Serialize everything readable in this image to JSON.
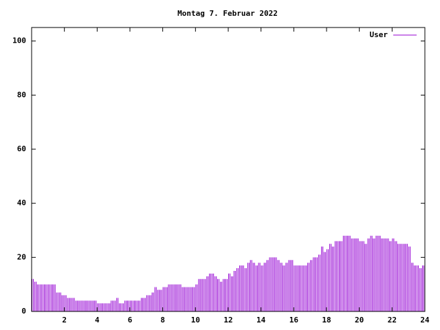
{
  "chart_data": {
    "type": "bar",
    "title": "Montag 7. Februar 2022",
    "xlim": [
      0,
      24
    ],
    "xticks": [
      2,
      4,
      6,
      8,
      10,
      12,
      14,
      16,
      18,
      20,
      22,
      24
    ],
    "ylim": [
      0,
      105
    ],
    "yticks": [
      0,
      20,
      40,
      60,
      80,
      100
    ],
    "legend": "top-right",
    "x": [
      0,
      0.17,
      0.33,
      0.5,
      0.67,
      0.83,
      1,
      1.17,
      1.33,
      1.5,
      1.67,
      1.83,
      2,
      2.17,
      2.33,
      2.5,
      2.67,
      2.83,
      3,
      3.17,
      3.33,
      3.5,
      3.67,
      3.83,
      4,
      4.17,
      4.33,
      4.5,
      4.67,
      4.83,
      5,
      5.17,
      5.33,
      5.5,
      5.67,
      5.83,
      6,
      6.17,
      6.33,
      6.5,
      6.67,
      6.83,
      7,
      7.17,
      7.33,
      7.5,
      7.67,
      7.83,
      8,
      8.17,
      8.33,
      8.5,
      8.67,
      8.83,
      9,
      9.17,
      9.33,
      9.5,
      9.67,
      9.83,
      10,
      10.17,
      10.33,
      10.5,
      10.67,
      10.83,
      11,
      11.17,
      11.33,
      11.5,
      11.67,
      11.83,
      12,
      12.17,
      12.33,
      12.5,
      12.67,
      12.83,
      13,
      13.17,
      13.33,
      13.5,
      13.67,
      13.83,
      14,
      14.17,
      14.33,
      14.5,
      14.67,
      14.83,
      15,
      15.17,
      15.33,
      15.5,
      15.67,
      15.83,
      16,
      16.17,
      16.33,
      16.5,
      16.67,
      16.83,
      17,
      17.17,
      17.33,
      17.5,
      17.67,
      17.83,
      18,
      18.17,
      18.33,
      18.5,
      18.67,
      18.83,
      19,
      19.17,
      19.33,
      19.5,
      19.67,
      19.83,
      20,
      20.17,
      20.33,
      20.5,
      20.67,
      20.83,
      21,
      21.17,
      21.33,
      21.5,
      21.67,
      21.83,
      22,
      22.17,
      22.33,
      22.5,
      22.67,
      22.83,
      23,
      23.17,
      23.33,
      23.5,
      23.67,
      23.83
    ],
    "series": [
      {
        "name": "User",
        "color": "#9400d3",
        "values": [
          12,
          11,
          10,
          10,
          10,
          10,
          10,
          10,
          10,
          7,
          7,
          6,
          6,
          5,
          5,
          5,
          4,
          4,
          4,
          4,
          4,
          4,
          4,
          4,
          3,
          3,
          3,
          3,
          3,
          4,
          4,
          5,
          3,
          3,
          4,
          4,
          4,
          4,
          4,
          4,
          5,
          5,
          6,
          6,
          7,
          9,
          8,
          8,
          9,
          9,
          10,
          10,
          10,
          10,
          10,
          9,
          9,
          9,
          9,
          9,
          10,
          12,
          12,
          12,
          13,
          14,
          14,
          13,
          12,
          11,
          12,
          12,
          14,
          13,
          15,
          16,
          17,
          17,
          16,
          18,
          19,
          18,
          17,
          18,
          17,
          18,
          19,
          20,
          20,
          20,
          19,
          18,
          17,
          18,
          19,
          19,
          17,
          17,
          17,
          17,
          17,
          18,
          19,
          20,
          20,
          21,
          24,
          22,
          23,
          25,
          24,
          26,
          26,
          26,
          28,
          28,
          28,
          27,
          27,
          27,
          26,
          26,
          25,
          27,
          28,
          27,
          28,
          28,
          27,
          27,
          27,
          26,
          27,
          26,
          25,
          25,
          25,
          25,
          24,
          18,
          17,
          17,
          16,
          17
        ]
      }
    ]
  }
}
